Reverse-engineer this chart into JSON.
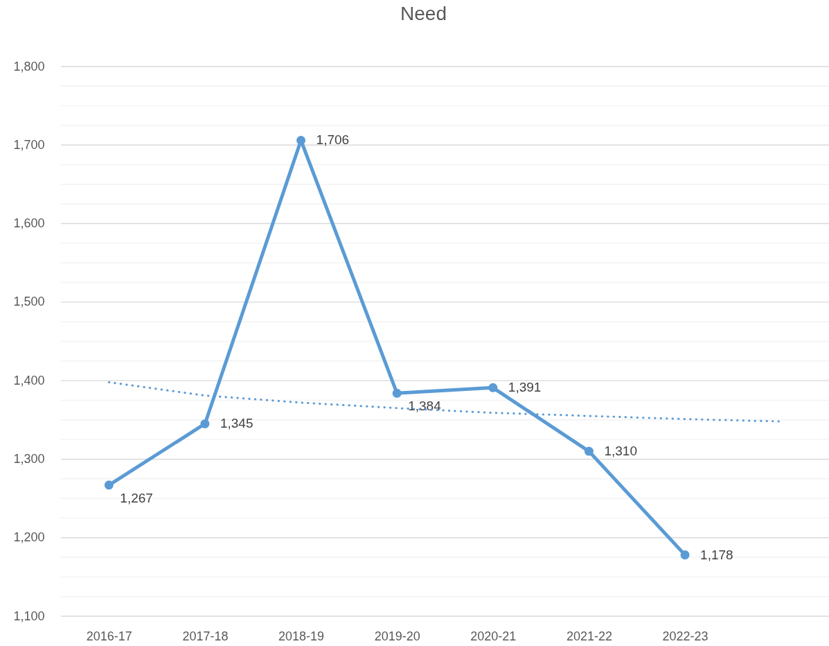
{
  "chart_data": {
    "type": "line",
    "title": "Need",
    "categories": [
      "2016-17",
      "2017-18",
      "2018-19",
      "2019-20",
      "2020-21",
      "2021-22",
      "2022-23",
      null
    ],
    "series": [
      {
        "color": "#5b9bd5",
        "values": [
          1267,
          1345,
          1706,
          1384,
          1391,
          1310,
          1178,
          null
        ],
        "value_labels": [
          "1,267",
          "1,345",
          "1,706",
          "1,384",
          "1,391",
          "1,310",
          "1,178",
          null
        ]
      },
      {
        "color": "#5b9bd5",
        "values": [
          1398,
          1381,
          1372,
          1365,
          1359,
          1355,
          1351,
          1348
        ],
        "marker": "none",
        "line_style": "dotted"
      }
    ],
    "ylim": [
      1100,
      1800
    ],
    "yticks": [
      {
        "value": 1100,
        "label": "1,100"
      },
      {
        "value": 1125,
        "label": null
      },
      {
        "value": 1150,
        "label": null
      },
      {
        "value": 1175,
        "label": null
      },
      {
        "value": 1200,
        "label": "1,200"
      },
      {
        "value": 1225,
        "label": null
      },
      {
        "value": 1250,
        "label": null
      },
      {
        "value": 1275,
        "label": null
      },
      {
        "value": 1300,
        "label": "1,300"
      },
      {
        "value": 1325,
        "label": null
      },
      {
        "value": 1350,
        "label": null
      },
      {
        "value": 1375,
        "label": null
      },
      {
        "value": 1400,
        "label": "1,400"
      },
      {
        "value": 1425,
        "label": null
      },
      {
        "value": 1450,
        "label": null
      },
      {
        "value": 1475,
        "label": null
      },
      {
        "value": 1500,
        "label": "1,500"
      },
      {
        "value": 1525,
        "label": null
      },
      {
        "value": 1550,
        "label": null
      },
      {
        "value": 1575,
        "label": null
      },
      {
        "value": 1600,
        "label": "1,600"
      },
      {
        "value": 1625,
        "label": null
      },
      {
        "value": 1650,
        "label": null
      },
      {
        "value": 1675,
        "label": null
      },
      {
        "value": 1700,
        "label": "1,700"
      },
      {
        "value": 1725,
        "label": null
      },
      {
        "value": 1750,
        "label": null
      },
      {
        "value": 1775,
        "label": null
      },
      {
        "value": 1800,
        "label": "1,800"
      }
    ],
    "grid": "y",
    "marker": "circle",
    "line_style": "solid"
  }
}
